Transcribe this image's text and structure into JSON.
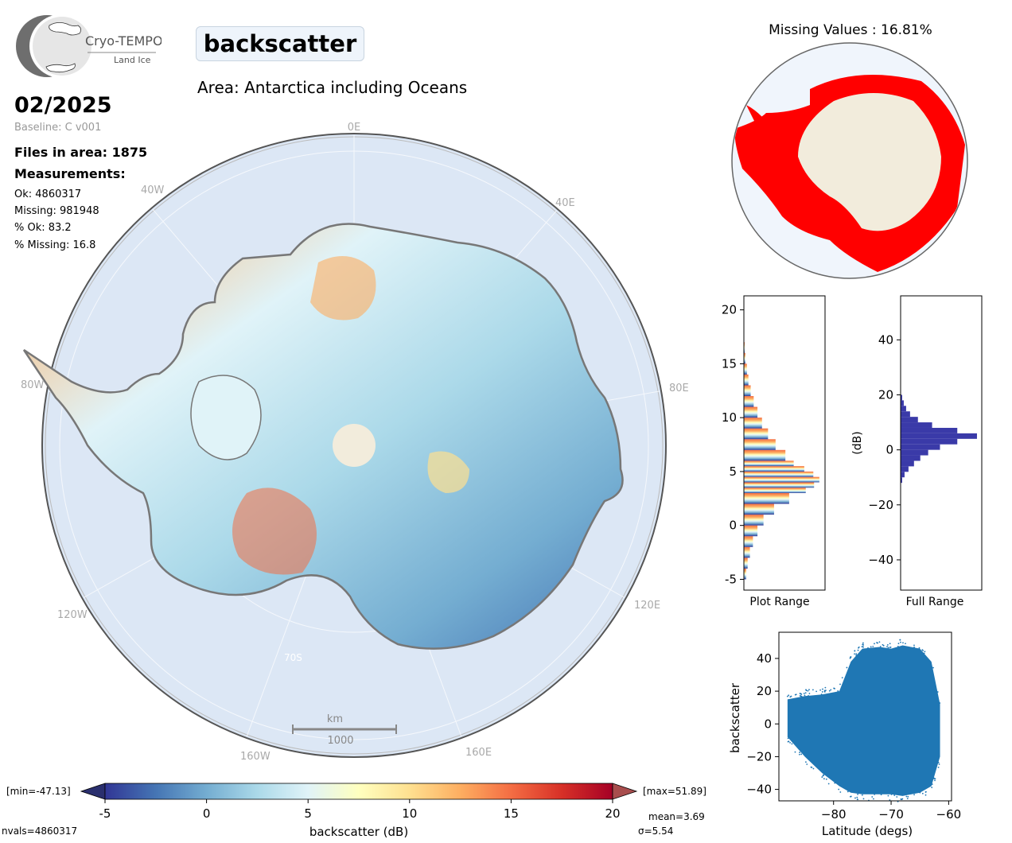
{
  "header": {
    "logo_name": "Cryo-TEMPO",
    "logo_sub": "Land Ice",
    "parameter": "backscatter",
    "area_title": "Area: Antarctica including Oceans",
    "date": "02/2025",
    "baseline": "Baseline: C v001",
    "files_in_area": "Files in area: 1875",
    "measurements_label": "Measurements:",
    "stats": {
      "ok": "Ok: 4860317",
      "missing": "Missing: 981948",
      "pct_ok": "% Ok: 83.2",
      "pct_missing": "% Missing: 16.8"
    }
  },
  "map": {
    "longitude_labels": [
      "0E",
      "40E",
      "80E",
      "120E",
      "160E",
      "160W",
      "120W",
      "80W",
      "40W"
    ],
    "latitude_label": "70S",
    "scale_unit": "km",
    "scale_value": "1000"
  },
  "missing_map": {
    "title": "Missing Values : 16.81%",
    "missing_color": "#ff0000",
    "ok_color": "#f2ecdc"
  },
  "colorbar": {
    "min_label": "[min=-47.13]",
    "max_label": "[max=51.89]",
    "ticks": [
      "-5",
      "0",
      "5",
      "10",
      "15",
      "20"
    ],
    "label": "backscatter (dB)",
    "mean": "mean=3.69",
    "sigma": "σ=5.54",
    "nvals": "nvals=4860317",
    "colormap": [
      "#313695",
      "#4575b4",
      "#74add1",
      "#abd9e9",
      "#e0f3f8",
      "#ffffbf",
      "#fee090",
      "#fdae61",
      "#f46d43",
      "#d73027",
      "#a50026"
    ]
  },
  "chart_data": [
    {
      "type": "bar",
      "orientation": "horizontal",
      "xlabel": "Plot Range",
      "ylim": [
        -6,
        21.3
      ],
      "yticks": [
        "20",
        "15",
        "10",
        "5",
        "0",
        "-5"
      ],
      "bins": [
        -5,
        -4,
        -3,
        -2,
        -1,
        0,
        1,
        2,
        3,
        3.5,
        4,
        4.5,
        5,
        5.5,
        6,
        7,
        8,
        9,
        10,
        11,
        12,
        13,
        14,
        15,
        16
      ],
      "values": [
        0.03,
        0.05,
        0.08,
        0.12,
        0.18,
        0.26,
        0.4,
        0.6,
        0.82,
        0.93,
        1.0,
        0.92,
        0.8,
        0.66,
        0.55,
        0.42,
        0.32,
        0.24,
        0.18,
        0.13,
        0.09,
        0.06,
        0.04,
        0.02,
        0.01
      ]
    },
    {
      "type": "bar",
      "orientation": "horizontal",
      "xlabel": "Full Range",
      "ylabel": "(dB)",
      "ylim": [
        -51,
        56
      ],
      "yticks": [
        "40",
        "20",
        "0",
        "−20",
        "−40"
      ],
      "bins": [
        -12,
        -10,
        -8,
        -6,
        -4,
        -2,
        0,
        2,
        4,
        6,
        8,
        10,
        12,
        14,
        16,
        18
      ],
      "values": [
        0.02,
        0.05,
        0.1,
        0.17,
        0.25,
        0.35,
        0.5,
        0.72,
        0.97,
        0.72,
        0.4,
        0.22,
        0.12,
        0.07,
        0.04,
        0.02
      ]
    },
    {
      "type": "scatter",
      "xlabel": "Latitude (degs)",
      "ylabel": "backscatter",
      "xlim": [
        -89.5,
        -59.5
      ],
      "ylim": [
        -47,
        56
      ],
      "xticks": [
        "−80",
        "−70",
        "−60"
      ],
      "yticks": [
        "40",
        "20",
        "0",
        "−20",
        "−40"
      ],
      "color": "#1f77b4",
      "envelope_upper": [
        [
          -88,
          15
        ],
        [
          -85,
          17
        ],
        [
          -82,
          18
        ],
        [
          -79,
          20
        ],
        [
          -77,
          38
        ],
        [
          -75,
          46
        ],
        [
          -72,
          47
        ],
        [
          -70,
          46
        ],
        [
          -68,
          48
        ],
        [
          -65,
          46
        ],
        [
          -63,
          38
        ],
        [
          -61.5,
          12
        ]
      ],
      "envelope_lower": [
        [
          -88,
          -8
        ],
        [
          -85,
          -20
        ],
        [
          -82,
          -30
        ],
        [
          -79,
          -38
        ],
        [
          -77,
          -42
        ],
        [
          -75,
          -43
        ],
        [
          -72,
          -43
        ],
        [
          -70,
          -43
        ],
        [
          -68,
          -44
        ],
        [
          -65,
          -42
        ],
        [
          -63,
          -38
        ],
        [
          -61.5,
          -20
        ]
      ]
    }
  ]
}
